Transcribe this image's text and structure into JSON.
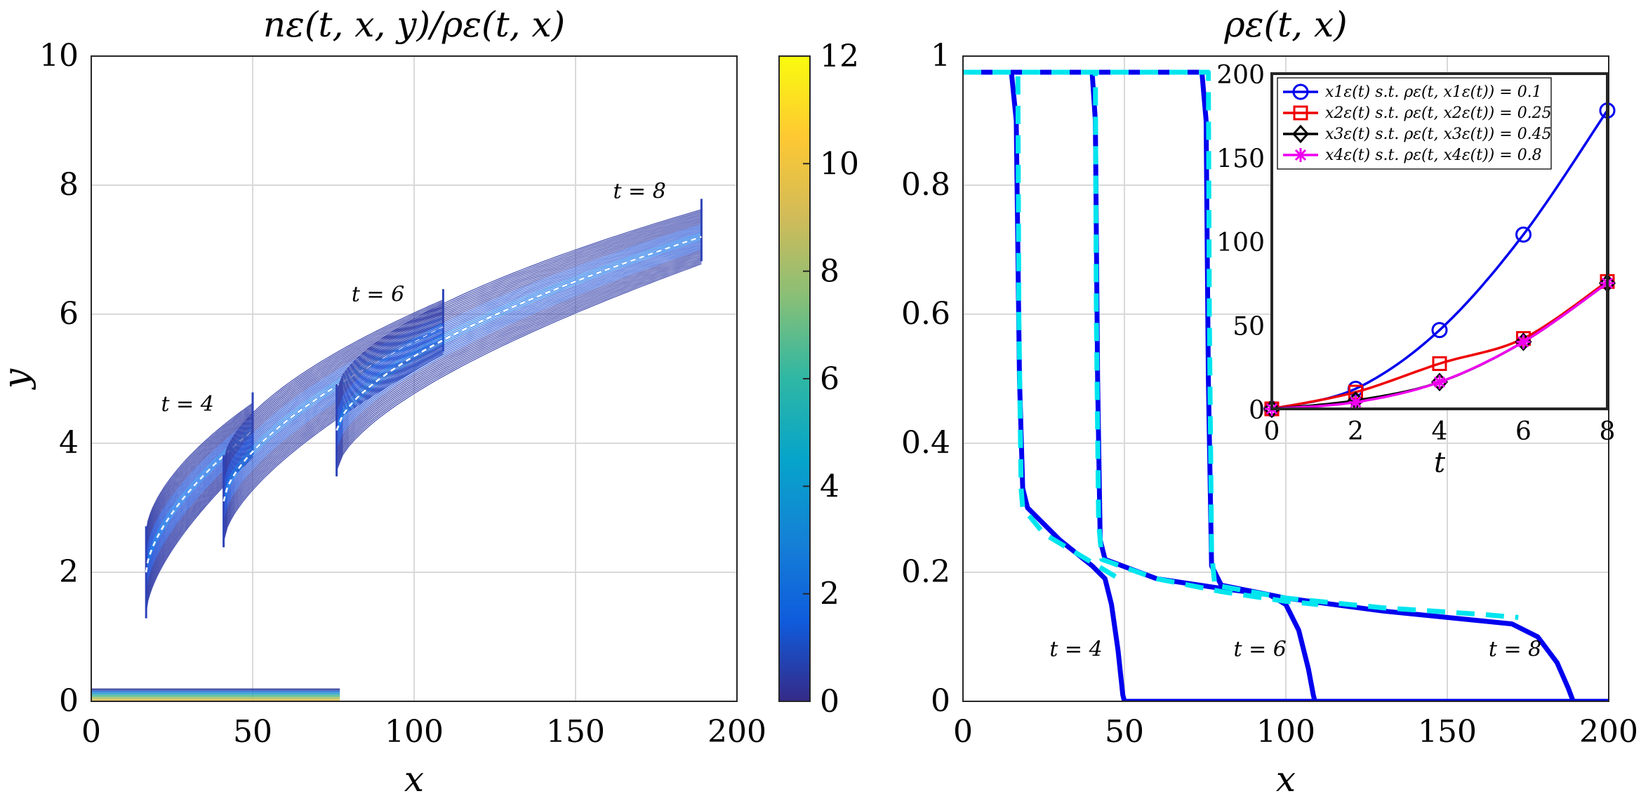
{
  "chart_data": [
    {
      "type": "heatmap",
      "title": "nε(t, x, y)/ρε(t, x)",
      "xlabel": "x",
      "ylabel": "y",
      "xlim": [
        0,
        200
      ],
      "ylim": [
        0,
        10
      ],
      "xticks": [
        "0",
        "50",
        "100",
        "150",
        "200"
      ],
      "yticks": [
        "0",
        "2",
        "4",
        "6",
        "8",
        "10"
      ],
      "grid": true,
      "colorbar": {
        "range": [
          0,
          12
        ],
        "ticks": [
          "0",
          "2",
          "4",
          "6",
          "8",
          "10",
          "12"
        ],
        "colors": [
          "#352a87",
          "#0f5cdd",
          "#1481d6",
          "#06a4ca",
          "#2eb7a4",
          "#87bf77",
          "#d1bb59",
          "#fec832",
          "#f9fb0e"
        ]
      },
      "annotations": [
        {
          "text": "t = 4",
          "x": 38,
          "y": 4.5
        },
        {
          "text": "t = 6",
          "x": 97,
          "y": 6.2
        },
        {
          "text": "t = 8",
          "x": 178,
          "y": 7.8
        }
      ],
      "bands": [
        {
          "name": "t = 4",
          "x_start": 17,
          "x_end": 50,
          "center_start": 2.0,
          "center_end": 4.2
        },
        {
          "name": "t = 6",
          "x_start": 41,
          "x_end": 109,
          "center_start": 3.1,
          "center_end": 5.8
        },
        {
          "name": "t = 8",
          "x_start": 76,
          "x_end": 189,
          "center_start": 4.2,
          "center_end": 7.2
        }
      ],
      "baseline_strip": {
        "x_start": 0,
        "x_end": 77,
        "y_max": 0.2
      }
    },
    {
      "type": "line",
      "title": "ρε(t, x)",
      "xlabel": "x",
      "ylabel": "",
      "xlim": [
        0,
        200
      ],
      "ylim": [
        0,
        1
      ],
      "xticks": [
        "0",
        "50",
        "100",
        "150",
        "200"
      ],
      "yticks": [
        "0",
        "0.2",
        "0.4",
        "0.6",
        "0.8",
        "1"
      ],
      "grid": true,
      "colors": {
        "solid": "#0000ee",
        "dashed": "#00e5ee"
      },
      "annotations": [
        {
          "text": "t = 4",
          "x": 35,
          "y": 0.07
        },
        {
          "text": "t = 6",
          "x": 92,
          "y": 0.07
        },
        {
          "text": "t = 8",
          "x": 171,
          "y": 0.07
        }
      ],
      "series": [
        {
          "style": "solid",
          "x": [
            0,
            15,
            16.5,
            17.5,
            18.5,
            20,
            30,
            40,
            44,
            46,
            48,
            49.5,
            50,
            200
          ],
          "y": [
            0.975,
            0.975,
            0.9,
            0.5,
            0.33,
            0.3,
            0.25,
            0.21,
            0.19,
            0.15,
            0.08,
            0.01,
            0,
            0
          ]
        },
        {
          "style": "solid",
          "x": [
            0,
            40,
            41,
            41.7,
            42.5,
            44,
            60,
            80,
            95,
            100,
            104,
            107,
            108.5,
            109,
            200
          ],
          "y": [
            0.975,
            0.975,
            0.9,
            0.5,
            0.25,
            0.22,
            0.19,
            0.175,
            0.165,
            0.15,
            0.11,
            0.05,
            0.01,
            0,
            0
          ]
        },
        {
          "style": "solid",
          "x": [
            0,
            74,
            75.3,
            76,
            77,
            80,
            100,
            130,
            160,
            170,
            178,
            184,
            187.5,
            189,
            200
          ],
          "y": [
            0.975,
            0.975,
            0.9,
            0.5,
            0.21,
            0.18,
            0.16,
            0.14,
            0.125,
            0.12,
            0.1,
            0.06,
            0.02,
            0,
            0
          ]
        },
        {
          "style": "dashed",
          "x": [
            0,
            17,
            17.3,
            18,
            18.5,
            25,
            35,
            45,
            50
          ],
          "y": [
            0.975,
            0.975,
            0.6,
            0.33,
            0.3,
            0.26,
            0.23,
            0.2,
            0.185
          ]
        },
        {
          "style": "dashed",
          "x": [
            0,
            41,
            41.3,
            42,
            43,
            60,
            80,
            100,
            110
          ],
          "y": [
            0.975,
            0.975,
            0.6,
            0.28,
            0.22,
            0.19,
            0.17,
            0.155,
            0.15
          ]
        },
        {
          "style": "dashed",
          "x": [
            0,
            76,
            76.3,
            77,
            78,
            100,
            130,
            160,
            172
          ],
          "y": [
            0.975,
            0.975,
            0.6,
            0.23,
            0.18,
            0.16,
            0.145,
            0.135,
            0.13
          ]
        }
      ]
    },
    {
      "type": "line",
      "title": "",
      "xlabel": "t",
      "ylabel": "",
      "xlim": [
        0,
        8
      ],
      "ylim": [
        0,
        200
      ],
      "xticks": [
        "0",
        "2",
        "4",
        "6",
        "8"
      ],
      "yticks": [
        "0",
        "50",
        "100",
        "150",
        "200"
      ],
      "grid": false,
      "legend_position": "top-left",
      "series": [
        {
          "name": "x1ε(t) s.t.  ρε(t, x1ε(t)) = 0.1",
          "color": "#0000ee",
          "marker": "circle",
          "x": [
            0,
            2,
            4,
            6,
            8
          ],
          "y": [
            0,
            12,
            47,
            104,
            178
          ]
        },
        {
          "name": "x2ε(t) s.t.  ρε(t, x2ε(t)) = 0.25",
          "color": "#ee0000",
          "marker": "square",
          "x": [
            0,
            2,
            4,
            6,
            8
          ],
          "y": [
            0,
            10,
            27,
            42,
            76
          ]
        },
        {
          "name": "x3ε(t) s.t.  ρε(t, x3ε(t)) = 0.45",
          "color": "#000000",
          "marker": "diamond",
          "x": [
            0,
            2,
            4,
            6,
            8
          ],
          "y": [
            0,
            5,
            16,
            40,
            75
          ]
        },
        {
          "name": "x4ε(t) s.t.  ρε(t, x4ε(t)) = 0.8",
          "color": "#ee00ee",
          "marker": "star",
          "x": [
            0,
            2,
            4,
            6,
            8
          ],
          "y": [
            0,
            4,
            16,
            40,
            75
          ]
        }
      ]
    }
  ]
}
